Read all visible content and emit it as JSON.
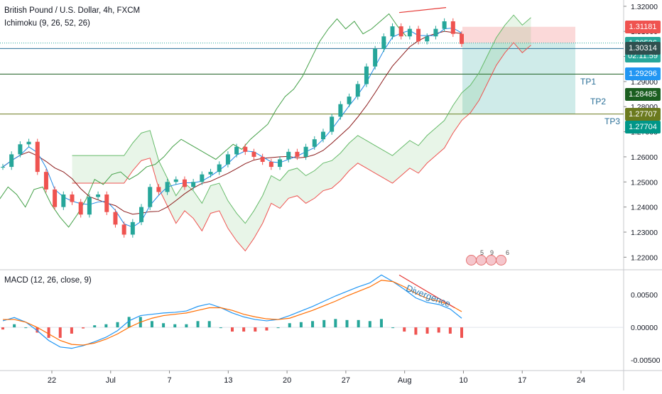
{
  "header": {
    "title": "British Pound / U.S. Dollar, 4h, FXCM",
    "indicator": "Ichimoku (9, 26, 52, 26)",
    "macd": "MACD (12, 26, close, 9)"
  },
  "annotations": {
    "divergence": "Divergence",
    "tp1": "TP1",
    "tp2": "TP2",
    "tp3": "TP3"
  },
  "price_labels": [
    {
      "text": "1.31181",
      "color": "#ef5350"
    },
    {
      "text": "1.30536",
      "color": "#26a69a"
    },
    {
      "text": "02:11:59",
      "color": "#26a69a"
    },
    {
      "text": "1.30314",
      "color": "#2f4f4f"
    },
    {
      "text": "1.29296",
      "color": "#2196f3"
    },
    {
      "text": "1.28485",
      "color": "#1b5e20"
    },
    {
      "text": "1.27707",
      "color": "#6b7a1e"
    },
    {
      "text": "1.27704",
      "color": "#009688"
    }
  ],
  "events": {
    "numbers": [
      "5",
      "9",
      "6"
    ]
  },
  "chart_data": [
    {
      "type": "line",
      "title": "British Pound / U.S. Dollar, 4h, FXCM",
      "indicator": "Ichimoku (9, 26, 52, 26)",
      "y_axis": {
        "ticks": [
          "1.32000",
          "1.31000",
          "1.30000",
          "1.29000",
          "1.28000",
          "1.27000",
          "1.26000",
          "1.25000",
          "1.24000",
          "1.23000",
          "1.22000"
        ],
        "range": [
          1.215,
          1.3225
        ]
      },
      "x_axis": {
        "ticks": [
          "22",
          "Jul",
          "7",
          "13",
          "20",
          "27",
          "Aug",
          "10",
          "17",
          "24"
        ]
      },
      "price_close": [
        1.256,
        1.261,
        1.265,
        1.266,
        1.254,
        1.247,
        1.24,
        1.245,
        1.242,
        1.237,
        1.244,
        1.245,
        1.238,
        1.233,
        1.229,
        1.234,
        1.24,
        1.248,
        1.246,
        1.25,
        1.251,
        1.248,
        1.25,
        1.253,
        1.254,
        1.257,
        1.261,
        1.264,
        1.262,
        1.26,
        1.258,
        1.256,
        1.259,
        1.262,
        1.26,
        1.264,
        1.267,
        1.27,
        1.276,
        1.281,
        1.284,
        1.289,
        1.296,
        1.303,
        1.308,
        1.312,
        1.308,
        1.311,
        1.306,
        1.308,
        1.311,
        1.314,
        1.309,
        1.305
      ],
      "levels": {
        "entry": 1.30536,
        "stop_loss": 1.31181,
        "tp1": 1.30314,
        "tp2": 1.29296,
        "tp3": 1.28485
      }
    },
    {
      "type": "bar",
      "title": "MACD (12, 26, close, 9)",
      "y_axis": {
        "ticks": [
          "0.00500",
          "0.00000",
          "-0.00500"
        ],
        "range": [
          -0.0066,
          0.0088
        ]
      },
      "macd": [
        0.001,
        0.0015,
        0.0008,
        -0.0005,
        -0.002,
        -0.003,
        -0.0032,
        -0.0028,
        -0.0022,
        -0.0015,
        -0.0005,
        0.001,
        0.0018,
        0.002,
        0.0022,
        0.0023,
        0.0025,
        0.0032,
        0.0036,
        0.003,
        0.0022,
        0.0016,
        0.0012,
        0.001,
        0.0012,
        0.0018,
        0.0025,
        0.0032,
        0.004,
        0.0048,
        0.0055,
        0.0062,
        0.0068,
        0.008,
        0.007,
        0.0058,
        0.0045,
        0.0038,
        0.0035,
        0.0028,
        0.0014
      ],
      "signal": [
        0.0012,
        0.0012,
        0.0008,
        0.0,
        -0.001,
        -0.002,
        -0.0026,
        -0.0027,
        -0.0024,
        -0.0018,
        -0.001,
        0.0,
        0.0008,
        0.0014,
        0.0018,
        0.002,
        0.0022,
        0.0026,
        0.003,
        0.003,
        0.0026,
        0.002,
        0.0016,
        0.0013,
        0.0012,
        0.0014,
        0.002,
        0.0026,
        0.0033,
        0.004,
        0.0048,
        0.0055,
        0.0062,
        0.0072,
        0.007,
        0.0062,
        0.0052,
        0.0044,
        0.004,
        0.0034,
        0.0024
      ]
    }
  ]
}
